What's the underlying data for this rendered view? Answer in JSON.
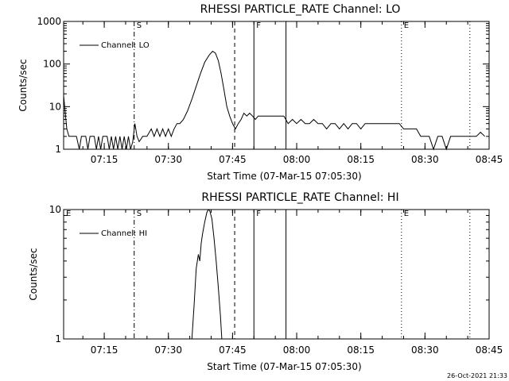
{
  "footer": {
    "timestamp": "26-Oct-2021 21:33"
  },
  "chart_data": [
    {
      "type": "line",
      "title": "RHESSI PARTICLE_RATE Channel: LO",
      "xlabel": "Start Time (07-Mar-15 07:05:30)",
      "ylabel": "Counts/sec",
      "yscale": "log",
      "ylim": [
        1,
        1000
      ],
      "y_ticks": [
        {
          "value": 1,
          "label": "1"
        },
        {
          "value": 10,
          "label": "10"
        },
        {
          "value": 100,
          "label": "100"
        },
        {
          "value": 1000,
          "label": "1000"
        }
      ],
      "xlim": [
        "07:05:30",
        "08:45:00"
      ],
      "x_ticks": [
        "07:15",
        "07:30",
        "07:45",
        "08:00",
        "08:15",
        "08:30",
        "08:45"
      ],
      "legend": {
        "placement": "top-left",
        "entries": [
          "Channel: LO"
        ]
      },
      "markers": [
        {
          "time": "07:22:00",
          "label": "S",
          "style": "dash-dot"
        },
        {
          "time": "07:45:30",
          "label": "",
          "style": "dashed"
        },
        {
          "time": "07:50:00",
          "label": "F",
          "style": "solid"
        },
        {
          "time": "07:57:30",
          "label": "",
          "style": "solid"
        },
        {
          "time": "08:24:30",
          "label": "E",
          "style": "dotted"
        },
        {
          "time": "08:40:30",
          "label": "",
          "style": "dotted"
        }
      ],
      "series": [
        {
          "name": "Channel: LO",
          "points": [
            [
              "07:05:30",
              18
            ],
            [
              "07:05:50",
              8
            ],
            [
              "07:06:15",
              3
            ],
            [
              "07:06:45",
              2
            ],
            [
              "07:07:30",
              2
            ],
            [
              "07:08:30",
              2
            ],
            [
              "07:09:10",
              1
            ],
            [
              "07:09:40",
              2
            ],
            [
              "07:10:40",
              2
            ],
            [
              "07:11:10",
              1
            ],
            [
              "07:11:40",
              2
            ],
            [
              "07:12:40",
              2
            ],
            [
              "07:13:10",
              1
            ],
            [
              "07:13:40",
              2
            ],
            [
              "07:14:10",
              1
            ],
            [
              "07:14:40",
              2
            ],
            [
              "07:15:40",
              2
            ],
            [
              "07:16:10",
              1
            ],
            [
              "07:16:40",
              2
            ],
            [
              "07:17:10",
              1
            ],
            [
              "07:17:40",
              2
            ],
            [
              "07:18:10",
              1
            ],
            [
              "07:18:40",
              2
            ],
            [
              "07:19:10",
              1
            ],
            [
              "07:19:40",
              2
            ],
            [
              "07:20:10",
              1
            ],
            [
              "07:20:40",
              2
            ],
            [
              "07:21:10",
              1
            ],
            [
              "07:21:40",
              1.5
            ],
            [
              "07:22:10",
              4
            ],
            [
              "07:22:40",
              2
            ],
            [
              "07:23:10",
              1.5
            ],
            [
              "07:24:00",
              2
            ],
            [
              "07:25:00",
              2
            ],
            [
              "07:26:00",
              3
            ],
            [
              "07:26:40",
              2
            ],
            [
              "07:27:20",
              3
            ],
            [
              "07:28:00",
              2
            ],
            [
              "07:28:40",
              3
            ],
            [
              "07:29:20",
              2
            ],
            [
              "07:30:00",
              3
            ],
            [
              "07:30:40",
              2
            ],
            [
              "07:31:20",
              3
            ],
            [
              "07:32:00",
              4
            ],
            [
              "07:32:40",
              4
            ],
            [
              "07:33:30",
              5
            ],
            [
              "07:34:30",
              8
            ],
            [
              "07:35:30",
              15
            ],
            [
              "07:36:30",
              30
            ],
            [
              "07:37:30",
              60
            ],
            [
              "07:38:30",
              110
            ],
            [
              "07:39:30",
              160
            ],
            [
              "07:40:20",
              200
            ],
            [
              "07:41:00",
              180
            ],
            [
              "07:41:40",
              120
            ],
            [
              "07:42:20",
              60
            ],
            [
              "07:43:00",
              25
            ],
            [
              "07:43:40",
              10
            ],
            [
              "07:44:20",
              6
            ],
            [
              "07:45:00",
              4
            ],
            [
              "07:45:40",
              3
            ],
            [
              "07:46:20",
              4
            ],
            [
              "07:47:00",
              5
            ],
            [
              "07:47:40",
              7
            ],
            [
              "07:48:20",
              6
            ],
            [
              "07:49:00",
              7
            ],
            [
              "07:49:40",
              6
            ],
            [
              "07:50:20",
              5
            ],
            [
              "07:51:00",
              6
            ],
            [
              "07:52:00",
              6
            ],
            [
              "07:53:00",
              6
            ],
            [
              "07:54:00",
              6
            ],
            [
              "07:55:00",
              6
            ],
            [
              "07:56:00",
              6
            ],
            [
              "07:57:00",
              6
            ],
            [
              "07:58:00",
              4
            ],
            [
              "07:59:00",
              5
            ],
            [
              "08:00:00",
              4
            ],
            [
              "08:01:00",
              5
            ],
            [
              "08:02:00",
              4
            ],
            [
              "08:03:00",
              4
            ],
            [
              "08:04:00",
              5
            ],
            [
              "08:05:00",
              4
            ],
            [
              "08:06:00",
              4
            ],
            [
              "08:07:00",
              3
            ],
            [
              "08:08:00",
              4
            ],
            [
              "08:09:00",
              4
            ],
            [
              "08:10:00",
              3
            ],
            [
              "08:11:00",
              4
            ],
            [
              "08:12:00",
              3
            ],
            [
              "08:13:00",
              4
            ],
            [
              "08:14:00",
              4
            ],
            [
              "08:15:00",
              3
            ],
            [
              "08:16:00",
              4
            ],
            [
              "08:17:00",
              4
            ],
            [
              "08:18:00",
              4
            ],
            [
              "08:19:00",
              4
            ],
            [
              "08:20:00",
              4
            ],
            [
              "08:21:00",
              4
            ],
            [
              "08:22:00",
              4
            ],
            [
              "08:23:00",
              4
            ],
            [
              "08:24:00",
              4
            ],
            [
              "08:25:00",
              3
            ],
            [
              "08:26:00",
              3
            ],
            [
              "08:27:00",
              3
            ],
            [
              "08:28:00",
              3
            ],
            [
              "08:29:00",
              2
            ],
            [
              "08:30:00",
              2
            ],
            [
              "08:31:00",
              2
            ],
            [
              "08:32:00",
              1
            ],
            [
              "08:33:00",
              2
            ],
            [
              "08:34:00",
              2
            ],
            [
              "08:35:00",
              1
            ],
            [
              "08:36:00",
              2
            ],
            [
              "08:37:00",
              2
            ],
            [
              "08:38:00",
              2
            ],
            [
              "08:39:00",
              2
            ],
            [
              "08:40:00",
              2
            ],
            [
              "08:41:00",
              2
            ],
            [
              "08:42:00",
              2
            ],
            [
              "08:43:00",
              2.5
            ],
            [
              "08:44:00",
              2
            ]
          ]
        }
      ]
    },
    {
      "type": "line",
      "title": "RHESSI PARTICLE_RATE Channel: HI",
      "xlabel": "Start Time (07-Mar-15 07:05:30)",
      "ylabel": "Counts/sec",
      "yscale": "log",
      "ylim": [
        1,
        10
      ],
      "y_ticks": [
        {
          "value": 1,
          "label": "1"
        },
        {
          "value": 10,
          "label": "10"
        }
      ],
      "xlim": [
        "07:05:30",
        "08:45:00"
      ],
      "x_ticks": [
        "07:15",
        "07:30",
        "07:45",
        "08:00",
        "08:15",
        "08:30",
        "08:45"
      ],
      "legend": {
        "placement": "top-left",
        "entries": [
          "Channel: HI"
        ]
      },
      "markers": [
        {
          "time": "07:05:30",
          "label": "E",
          "style": "none"
        },
        {
          "time": "07:22:00",
          "label": "S",
          "style": "dash-dot"
        },
        {
          "time": "07:45:30",
          "label": "",
          "style": "dashed"
        },
        {
          "time": "07:50:00",
          "label": "F",
          "style": "solid"
        },
        {
          "time": "07:57:30",
          "label": "",
          "style": "solid"
        },
        {
          "time": "08:24:30",
          "label": "E",
          "style": "dotted"
        },
        {
          "time": "08:40:30",
          "label": "",
          "style": "dotted"
        }
      ],
      "series": [
        {
          "name": "Channel: HI",
          "points": [
            [
              "07:35:30",
              1
            ],
            [
              "07:36:00",
              1.8
            ],
            [
              "07:36:30",
              3.5
            ],
            [
              "07:37:00",
              4.5
            ],
            [
              "07:37:20",
              4
            ],
            [
              "07:37:40",
              5.5
            ],
            [
              "07:38:00",
              6.5
            ],
            [
              "07:38:30",
              8
            ],
            [
              "07:39:00",
              9.5
            ],
            [
              "07:39:20",
              10
            ],
            [
              "07:39:40",
              9.8
            ],
            [
              "07:40:10",
              8.5
            ],
            [
              "07:40:40",
              6
            ],
            [
              "07:41:10",
              4
            ],
            [
              "07:41:40",
              2.5
            ],
            [
              "07:42:10",
              1.5
            ],
            [
              "07:42:30",
              1
            ]
          ]
        }
      ]
    }
  ]
}
